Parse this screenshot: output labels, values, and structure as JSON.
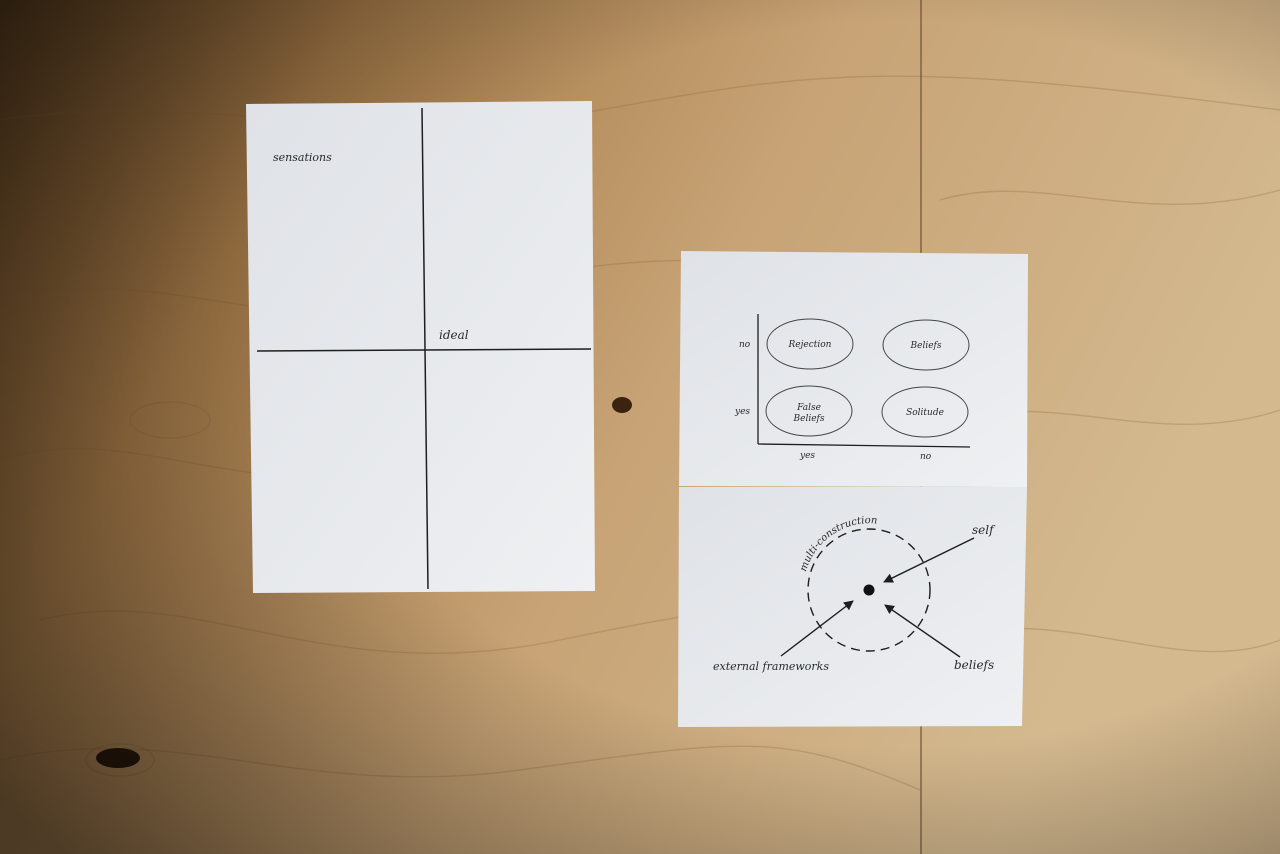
{
  "scene": {
    "description_kind": "photo of printed diagram cards on plywood"
  },
  "left_card": {
    "label_top_left": "sensations",
    "label_center": "ideal"
  },
  "right_card_top": {
    "y_axis_labels": [
      "no",
      "yes"
    ],
    "x_axis_labels": [
      "yes",
      "no"
    ],
    "cells": [
      "Rejection",
      "Beliefs",
      "False",
      "Beliefs",
      "Solitude"
    ]
  },
  "right_card_bottom": {
    "circle_label": "multi-construction",
    "self_label": "self",
    "external_label": "external frameworks",
    "beliefs_label": "beliefs"
  },
  "colors": {
    "wood": "#b08a5c",
    "paper": "#e9ebee",
    "ink": "#1e1e1e"
  }
}
